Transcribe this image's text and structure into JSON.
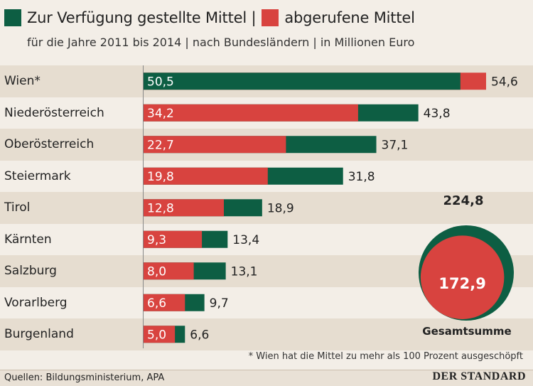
{
  "legend": {
    "available_label": "Zur Verfügung gestellte Mittel |",
    "used_label": "abgerufene Mittel"
  },
  "subtitle": "für die Jahre 2011 bis 2014 | nach Bundesländern | in Millionen Euro",
  "colors": {
    "available": "#0d5e43",
    "used": "#d8433f",
    "band": "#e6ddd0",
    "background": "#f3eee7"
  },
  "chart_data": {
    "type": "bar",
    "categories": [
      "Wien*",
      "Niederösterreich",
      "Oberösterreich",
      "Steiermark",
      "Tirol",
      "Kärnten",
      "Salzburg",
      "Vorarlberg",
      "Burgenland"
    ],
    "series": [
      {
        "name": "Zur Verfügung gestellte Mittel",
        "values": [
          50.5,
          43.8,
          37.1,
          31.8,
          18.9,
          13.4,
          13.1,
          9.7,
          6.6
        ],
        "labels": [
          "50,5",
          "43,8",
          "37,1",
          "31,8",
          "18,9",
          "13,4",
          "13,1",
          "9,7",
          "6,6"
        ]
      },
      {
        "name": "abgerufene Mittel",
        "values": [
          54.6,
          34.2,
          22.7,
          19.8,
          12.8,
          9.3,
          8.0,
          6.6,
          5.0
        ],
        "labels": [
          "54,6",
          "34,2",
          "22,7",
          "19,8",
          "12,8",
          "9,3",
          "8,0",
          "6,6",
          "5,0"
        ]
      }
    ],
    "total": {
      "available_label": "224,8",
      "used_label": "172,9",
      "available": 224.8,
      "used": 172.9,
      "caption": "Gesamtsumme"
    },
    "xlim": [
      0,
      54.6
    ]
  },
  "footnote": "* Wien hat die Mittel zu mehr als 100 Prozent ausgeschöpft",
  "sources": "Quellen: Bildungsministerium, APA",
  "brand": "DER STANDARD"
}
